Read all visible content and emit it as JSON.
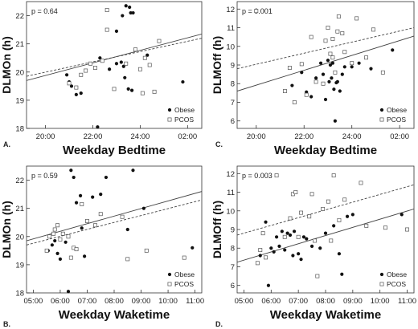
{
  "chart_data": [
    {
      "panel_label": "A.",
      "type": "scatter",
      "xlabel": "Weekday Bedtime",
      "ylabel": "DLMOn (h)",
      "annotation": "p = 0.64",
      "x_ticks": [
        "20:00",
        "22:00",
        "24:00",
        "02:00"
      ],
      "x_tick_values": [
        20,
        22,
        24,
        26
      ],
      "y_ticks": [
        "18",
        "19",
        "20",
        "21",
        "22"
      ],
      "xlim": [
        19.2,
        26.6
      ],
      "ylim": [
        18,
        22.5
      ],
      "legend": [
        "Obese",
        "PCOS"
      ],
      "series": [
        {
          "name": "Obese",
          "marker": "filled-circle",
          "points": [
            [
              20.9,
              19.9
            ],
            [
              21.0,
              19.65
            ],
            [
              21.1,
              19.5
            ],
            [
              21.3,
              19.2
            ],
            [
              21.5,
              19.25
            ],
            [
              22.2,
              18.05
            ],
            [
              22.3,
              20.5
            ],
            [
              22.7,
              20.1
            ],
            [
              23.0,
              21.45
            ],
            [
              23.0,
              20.3
            ],
            [
              23.2,
              20.35
            ],
            [
              23.25,
              22.0
            ],
            [
              23.3,
              20.2
            ],
            [
              23.35,
              19.8
            ],
            [
              23.4,
              22.35
            ],
            [
              23.5,
              19.4
            ],
            [
              23.55,
              22.3
            ],
            [
              23.6,
              22.1
            ],
            [
              23.65,
              19.35
            ],
            [
              23.7,
              22.1
            ],
            [
              24.3,
              20.6
            ],
            [
              25.8,
              19.65
            ]
          ],
          "fit": [
            [
              19.2,
              19.7
            ],
            [
              26.6,
              21.35
            ]
          ]
        },
        {
          "name": "PCOS",
          "marker": "open-square",
          "points": [
            [
              21.0,
              19.6
            ],
            [
              21.3,
              19.45
            ],
            [
              21.5,
              19.9
            ],
            [
              21.7,
              20.05
            ],
            [
              21.9,
              20.3
            ],
            [
              22.1,
              20.15
            ],
            [
              22.4,
              20.4
            ],
            [
              22.6,
              21.5
            ],
            [
              22.6,
              22.2
            ],
            [
              22.9,
              19.4
            ],
            [
              23.4,
              20.3
            ],
            [
              23.8,
              20.8
            ],
            [
              24.0,
              20.1
            ],
            [
              24.1,
              19.25
            ],
            [
              24.2,
              20.5
            ],
            [
              24.4,
              20.25
            ],
            [
              24.6,
              19.3
            ],
            [
              24.8,
              21.1
            ]
          ],
          "fit": [
            [
              19.2,
              19.85
            ],
            [
              26.6,
              21.2
            ]
          ]
        }
      ]
    },
    {
      "panel_label": "C.",
      "type": "scatter",
      "xlabel": "Weekday Bedtime",
      "ylabel": "DLMOff (h)",
      "annotation": "p = 0.001",
      "x_ticks": [
        "20:00",
        "22:00",
        "24:00",
        "02:00"
      ],
      "x_tick_values": [
        20,
        22,
        24,
        26
      ],
      "y_ticks": [
        "6",
        "7",
        "8",
        "9",
        "10",
        "11",
        "12"
      ],
      "xlim": [
        19.2,
        26.6
      ],
      "ylim": [
        5.6,
        12.4
      ],
      "legend": [
        "Obese",
        "PCOS"
      ],
      "series": [
        {
          "name": "Obese",
          "marker": "filled-circle",
          "points": [
            [
              21.5,
              7.9
            ],
            [
              21.9,
              8.6
            ],
            [
              22.1,
              7.55
            ],
            [
              22.3,
              7.3
            ],
            [
              22.5,
              8.3
            ],
            [
              22.7,
              9.1
            ],
            [
              22.8,
              8.5
            ],
            [
              22.9,
              7.15
            ],
            [
              23.0,
              9.25
            ],
            [
              23.05,
              8.1
            ],
            [
              23.1,
              9.0
            ],
            [
              23.15,
              8.3
            ],
            [
              23.2,
              9.1
            ],
            [
              23.25,
              7.7
            ],
            [
              23.3,
              6.0
            ],
            [
              23.35,
              8.05
            ],
            [
              23.4,
              8.1
            ],
            [
              23.5,
              7.6
            ],
            [
              23.6,
              8.5
            ],
            [
              23.7,
              8.9
            ],
            [
              24.0,
              8.9
            ],
            [
              24.3,
              9.1
            ],
            [
              24.8,
              8.8
            ],
            [
              25.7,
              9.8
            ]
          ],
          "fit": [
            [
              19.2,
              7.6
            ],
            [
              26.6,
              10.55
            ]
          ]
        },
        {
          "name": "PCOS",
          "marker": "open-square",
          "points": [
            [
              20.0,
              11.9
            ],
            [
              21.2,
              7.6
            ],
            [
              21.4,
              8.85
            ],
            [
              21.6,
              7.0
            ],
            [
              21.9,
              9.05
            ],
            [
              22.1,
              7.4
            ],
            [
              22.3,
              10.5
            ],
            [
              22.5,
              8.1
            ],
            [
              22.8,
              8.0
            ],
            [
              22.9,
              10.3
            ],
            [
              23.0,
              11.0
            ],
            [
              23.1,
              9.6
            ],
            [
              23.2,
              9.4
            ],
            [
              23.2,
              10.4
            ],
            [
              23.3,
              8.6
            ],
            [
              23.4,
              10.8
            ],
            [
              23.45,
              11.6
            ],
            [
              23.6,
              10.7
            ],
            [
              23.7,
              9.7
            ],
            [
              24.0,
              9.1
            ],
            [
              24.2,
              11.5
            ],
            [
              24.6,
              9.4
            ],
            [
              24.9,
              10.9
            ],
            [
              25.3,
              8.6
            ]
          ],
          "fit": [
            [
              19.2,
              8.8
            ],
            [
              26.6,
              11.0
            ]
          ]
        }
      ]
    },
    {
      "panel_label": "B.",
      "type": "scatter",
      "xlabel": "Weekday Waketime",
      "ylabel": "DLMOn (h)",
      "annotation": "p = 0.59",
      "x_ticks": [
        "05:00",
        "06:00",
        "07:00",
        "08:00",
        "09:00",
        "10:00",
        "11:00"
      ],
      "x_tick_values": [
        5,
        6,
        7,
        8,
        9,
        10,
        11
      ],
      "y_ticks": [
        "18",
        "19",
        "20",
        "21",
        "22"
      ],
      "xlim": [
        4.75,
        11.25
      ],
      "ylim": [
        18,
        22.5
      ],
      "legend": [
        "Obese",
        "PCOS"
      ],
      "series": [
        {
          "name": "Obese",
          "marker": "filled-circle",
          "points": [
            [
              5.55,
              19.5
            ],
            [
              5.7,
              19.7
            ],
            [
              5.8,
              19.85
            ],
            [
              5.9,
              19.4
            ],
            [
              6.0,
              19.2
            ],
            [
              6.2,
              19.8
            ],
            [
              6.3,
              18.05
            ],
            [
              6.4,
              22.35
            ],
            [
              6.5,
              22.1
            ],
            [
              6.6,
              21.2
            ],
            [
              6.75,
              21.45
            ],
            [
              6.8,
              20.3
            ],
            [
              6.9,
              19.3
            ],
            [
              7.2,
              21.4
            ],
            [
              7.3,
              20.4
            ],
            [
              7.5,
              21.5
            ],
            [
              7.7,
              22.1
            ],
            [
              8.5,
              20.25
            ],
            [
              8.7,
              22.35
            ],
            [
              9.1,
              21.0
            ],
            [
              10.9,
              19.6
            ]
          ],
          "fit": [
            [
              4.75,
              19.85
            ],
            [
              11.25,
              21.6
            ]
          ]
        },
        {
          "name": "PCOS",
          "marker": "open-square",
          "points": [
            [
              5.5,
              19.5
            ],
            [
              5.6,
              20.0
            ],
            [
              5.75,
              20.1
            ],
            [
              5.8,
              20.25
            ],
            [
              5.9,
              20.4
            ],
            [
              6.0,
              19.9
            ],
            [
              6.1,
              20.1
            ],
            [
              6.3,
              20.0
            ],
            [
              6.4,
              19.25
            ],
            [
              6.5,
              19.6
            ],
            [
              6.6,
              19.55
            ],
            [
              6.8,
              21.15
            ],
            [
              7.0,
              20.55
            ],
            [
              7.3,
              20.4
            ],
            [
              7.5,
              20.8
            ],
            [
              8.3,
              20.7
            ],
            [
              8.5,
              19.2
            ],
            [
              9.2,
              19.5
            ],
            [
              10.6,
              19.25
            ]
          ],
          "fit": [
            [
              4.75,
              19.7
            ],
            [
              11.25,
              21.3
            ]
          ]
        }
      ]
    },
    {
      "panel_label": "D.",
      "type": "scatter",
      "xlabel": "Weekday Waketime",
      "ylabel": "DLMOff (h)",
      "annotation": "p = 0.003",
      "x_ticks": [
        "05:00",
        "06:00",
        "07:00",
        "08:00",
        "09:00",
        "10:00",
        "11:00"
      ],
      "x_tick_values": [
        5,
        6,
        7,
        8,
        9,
        10,
        11
      ],
      "y_ticks": [
        "6",
        "7",
        "8",
        "9",
        "10",
        "11",
        "12"
      ],
      "xlim": [
        4.75,
        11.25
      ],
      "ylim": [
        5.6,
        12.4
      ],
      "legend": [
        "Obese",
        "PCOS"
      ],
      "series": [
        {
          "name": "Obese",
          "marker": "filled-circle",
          "points": [
            [
              5.6,
              7.6
            ],
            [
              5.8,
              9.4
            ],
            [
              5.9,
              6.0
            ],
            [
              6.0,
              8.0
            ],
            [
              6.1,
              7.8
            ],
            [
              6.2,
              8.6
            ],
            [
              6.3,
              8.1
            ],
            [
              6.4,
              8.9
            ],
            [
              6.5,
              7.9
            ],
            [
              6.6,
              8.8
            ],
            [
              6.7,
              8.7
            ],
            [
              6.8,
              7.6
            ],
            [
              6.85,
              8.9
            ],
            [
              7.0,
              7.7
            ],
            [
              7.1,
              7.4
            ],
            [
              7.2,
              8.6
            ],
            [
              7.3,
              8.5
            ],
            [
              7.5,
              8.1
            ],
            [
              7.8,
              8.0
            ],
            [
              8.0,
              8.8
            ],
            [
              8.3,
              9.2
            ],
            [
              8.5,
              7.7
            ],
            [
              8.6,
              6.6
            ],
            [
              8.8,
              9.7
            ],
            [
              9.0,
              9.8
            ],
            [
              10.8,
              9.8
            ]
          ],
          "fit": [
            [
              4.75,
              7.25
            ],
            [
              11.25,
              10.1
            ]
          ]
        },
        {
          "name": "PCOS",
          "marker": "open-square",
          "points": [
            [
              5.5,
              7.2
            ],
            [
              5.6,
              7.9
            ],
            [
              5.7,
              8.8
            ],
            [
              5.8,
              7.5
            ],
            [
              6.2,
              11.9
            ],
            [
              6.5,
              8.6
            ],
            [
              6.7,
              9.6
            ],
            [
              6.8,
              10.9
            ],
            [
              6.9,
              11.0
            ],
            [
              7.0,
              8.6
            ],
            [
              7.1,
              9.9
            ],
            [
              7.4,
              9.7
            ],
            [
              7.5,
              10.9
            ],
            [
              7.6,
              8.4
            ],
            [
              7.7,
              6.5
            ],
            [
              7.9,
              10.1
            ],
            [
              8.1,
              10.5
            ],
            [
              8.2,
              8.4
            ],
            [
              8.3,
              11.9
            ],
            [
              8.5,
              9.5
            ],
            [
              8.7,
              10.6
            ],
            [
              9.3,
              11.5
            ],
            [
              9.5,
              9.2
            ],
            [
              10.2,
              9.1
            ],
            [
              11.0,
              9.0
            ]
          ],
          "fit": [
            [
              4.75,
              8.7
            ],
            [
              11.25,
              11.4
            ]
          ]
        }
      ]
    }
  ]
}
